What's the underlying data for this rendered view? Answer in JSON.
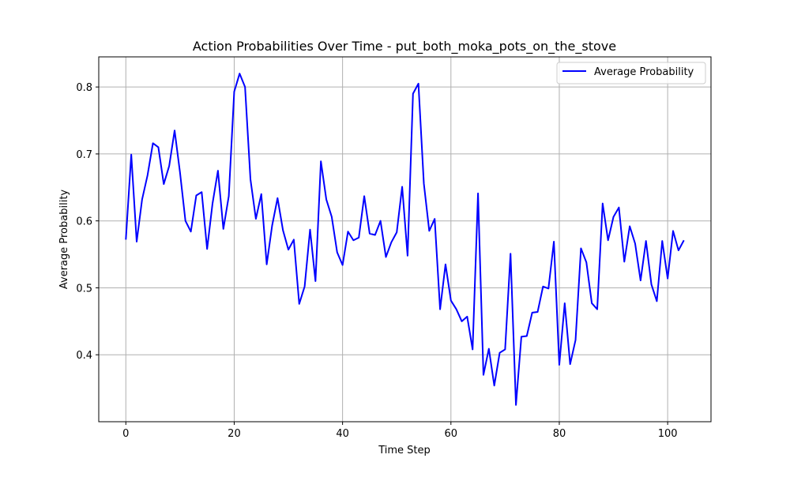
{
  "chart_data": {
    "type": "line",
    "title": "Action Probabilities Over Time - put_both_moka_pots_on_the_stove",
    "xlabel": "Time Step",
    "ylabel": "Average Probability",
    "xlim": [
      -5,
      108
    ],
    "ylim": [
      0.3,
      0.845
    ],
    "xticks": [
      0,
      20,
      40,
      60,
      80,
      100
    ],
    "xtick_labels": [
      "0",
      "20",
      "40",
      "60",
      "80",
      "100"
    ],
    "yticks": [
      0.4,
      0.5,
      0.6,
      0.7,
      0.8
    ],
    "ytick_labels": [
      "0.4",
      "0.5",
      "0.6",
      "0.7",
      "0.8"
    ],
    "grid": true,
    "legend_position": "top-right",
    "series": [
      {
        "name": "Average Probability",
        "color": "#0000ff",
        "x": [
          0,
          1,
          2,
          3,
          4,
          5,
          6,
          7,
          8,
          9,
          10,
          11,
          12,
          13,
          14,
          15,
          16,
          17,
          18,
          19,
          20,
          21,
          22,
          23,
          24,
          25,
          26,
          27,
          28,
          29,
          30,
          31,
          32,
          33,
          34,
          35,
          36,
          37,
          38,
          39,
          40,
          41,
          42,
          43,
          44,
          45,
          46,
          47,
          48,
          49,
          50,
          51,
          52,
          53,
          54,
          55,
          56,
          57,
          58,
          59,
          60,
          61,
          62,
          63,
          64,
          65,
          66,
          67,
          68,
          69,
          70,
          71,
          72,
          73,
          74,
          75,
          76,
          77,
          78,
          79,
          80,
          81,
          82,
          83,
          84,
          85,
          86,
          87,
          88,
          89,
          90,
          91,
          92,
          93,
          94,
          95,
          96,
          97,
          98,
          99,
          100,
          101,
          102,
          103
        ],
        "values": [
          0.572,
          0.699,
          0.569,
          0.632,
          0.668,
          0.716,
          0.71,
          0.655,
          0.682,
          0.735,
          0.672,
          0.6,
          0.584,
          0.638,
          0.643,
          0.558,
          0.626,
          0.675,
          0.588,
          0.637,
          0.793,
          0.82,
          0.8,
          0.662,
          0.603,
          0.64,
          0.535,
          0.593,
          0.634,
          0.586,
          0.557,
          0.572,
          0.476,
          0.502,
          0.587,
          0.51,
          0.689,
          0.632,
          0.606,
          0.553,
          0.534,
          0.584,
          0.571,
          0.575,
          0.637,
          0.581,
          0.579,
          0.6,
          0.546,
          0.568,
          0.583,
          0.651,
          0.548,
          0.79,
          0.805,
          0.656,
          0.585,
          0.603,
          0.468,
          0.535,
          0.481,
          0.468,
          0.45,
          0.457,
          0.408,
          0.641,
          0.37,
          0.409,
          0.354,
          0.403,
          0.408,
          0.551,
          0.325,
          0.427,
          0.428,
          0.463,
          0.464,
          0.502,
          0.499,
          0.569,
          0.385,
          0.477,
          0.386,
          0.422,
          0.559,
          0.538,
          0.477,
          0.468,
          0.626,
          0.571,
          0.606,
          0.62,
          0.539,
          0.592,
          0.566,
          0.511,
          0.57,
          0.505,
          0.48,
          0.57,
          0.514,
          0.585,
          0.556,
          0.571
        ]
      }
    ]
  }
}
